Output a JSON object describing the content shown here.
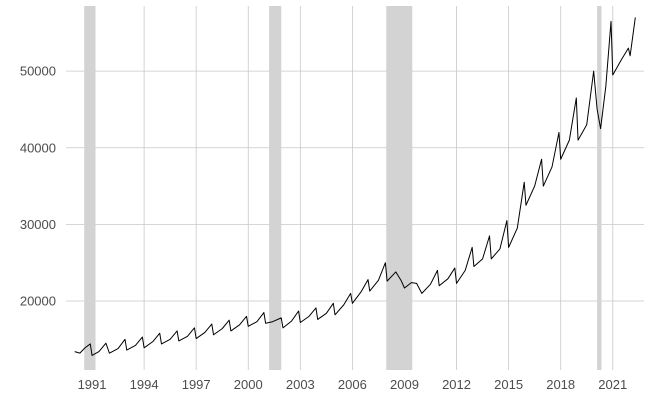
{
  "chart_data": {
    "type": "line",
    "title": "",
    "xlabel": "",
    "ylabel": "",
    "xlim": [
      1989.5,
      2022.8
    ],
    "ylim": [
      11000,
      58500
    ],
    "x_ticks": [
      1991,
      1994,
      1997,
      2000,
      2003,
      2006,
      2009,
      2012,
      2015,
      2018,
      2021
    ],
    "y_ticks": [
      20000,
      30000,
      40000,
      50000
    ],
    "y_tick_labels": [
      "20000",
      "30000",
      "40000",
      "50000"
    ],
    "grid": true,
    "legend": "none",
    "colors": {
      "line": "#000000",
      "recession": "#d3d3d3",
      "grid": "#c8c8c8",
      "text": "#4d4d4d"
    },
    "recessions": [
      {
        "start": 1990.55,
        "end": 1991.2
      },
      {
        "start": 2001.2,
        "end": 2001.9
      },
      {
        "start": 2007.95,
        "end": 2009.45
      },
      {
        "start": 2020.1,
        "end": 2020.35
      }
    ],
    "series": [
      {
        "points": [
          [
            1990.0,
            13400
          ],
          [
            1990.3,
            13200
          ],
          [
            1990.6,
            13900
          ],
          [
            1990.9,
            14400
          ],
          [
            1991.0,
            12900
          ],
          [
            1991.4,
            13400
          ],
          [
            1991.8,
            14500
          ],
          [
            1992.0,
            13200
          ],
          [
            1992.5,
            13800
          ],
          [
            1992.9,
            15000
          ],
          [
            1993.0,
            13600
          ],
          [
            1993.5,
            14200
          ],
          [
            1993.9,
            15300
          ],
          [
            1994.0,
            13900
          ],
          [
            1994.5,
            14700
          ],
          [
            1994.9,
            15800
          ],
          [
            1995.0,
            14400
          ],
          [
            1995.5,
            15000
          ],
          [
            1995.9,
            16100
          ],
          [
            1996.0,
            14800
          ],
          [
            1996.5,
            15400
          ],
          [
            1996.9,
            16500
          ],
          [
            1997.0,
            15100
          ],
          [
            1997.5,
            15900
          ],
          [
            1997.9,
            17000
          ],
          [
            1998.0,
            15600
          ],
          [
            1998.5,
            16400
          ],
          [
            1998.9,
            17500
          ],
          [
            1999.0,
            16100
          ],
          [
            1999.5,
            16900
          ],
          [
            1999.9,
            18000
          ],
          [
            2000.0,
            16700
          ],
          [
            2000.5,
            17300
          ],
          [
            2000.9,
            18500
          ],
          [
            2001.0,
            17100
          ],
          [
            2001.4,
            17300
          ],
          [
            2001.9,
            17800
          ],
          [
            2002.0,
            16500
          ],
          [
            2002.5,
            17400
          ],
          [
            2002.9,
            18700
          ],
          [
            2003.0,
            17200
          ],
          [
            2003.5,
            18000
          ],
          [
            2003.9,
            19100
          ],
          [
            2004.0,
            17600
          ],
          [
            2004.5,
            18400
          ],
          [
            2004.9,
            19700
          ],
          [
            2005.0,
            18200
          ],
          [
            2005.5,
            19500
          ],
          [
            2005.9,
            21000
          ],
          [
            2006.0,
            19700
          ],
          [
            2006.5,
            21200
          ],
          [
            2006.9,
            22800
          ],
          [
            2007.0,
            21300
          ],
          [
            2007.5,
            22700
          ],
          [
            2007.9,
            25000
          ],
          [
            2008.0,
            22600
          ],
          [
            2008.5,
            23800
          ],
          [
            2008.8,
            22700
          ],
          [
            2009.0,
            21700
          ],
          [
            2009.4,
            22400
          ],
          [
            2009.7,
            22300
          ],
          [
            2010.0,
            21000
          ],
          [
            2010.5,
            22200
          ],
          [
            2010.9,
            24000
          ],
          [
            2011.0,
            22000
          ],
          [
            2011.5,
            22900
          ],
          [
            2011.9,
            24300
          ],
          [
            2012.0,
            22300
          ],
          [
            2012.5,
            24000
          ],
          [
            2012.9,
            27000
          ],
          [
            2013.0,
            24500
          ],
          [
            2013.5,
            25500
          ],
          [
            2013.9,
            28500
          ],
          [
            2014.0,
            25500
          ],
          [
            2014.5,
            26800
          ],
          [
            2014.9,
            30500
          ],
          [
            2015.0,
            27000
          ],
          [
            2015.5,
            29500
          ],
          [
            2015.9,
            35500
          ],
          [
            2016.0,
            32500
          ],
          [
            2016.5,
            35000
          ],
          [
            2016.9,
            38500
          ],
          [
            2017.0,
            35000
          ],
          [
            2017.5,
            37500
          ],
          [
            2017.9,
            42000
          ],
          [
            2018.0,
            38500
          ],
          [
            2018.5,
            41000
          ],
          [
            2018.9,
            46500
          ],
          [
            2019.0,
            41000
          ],
          [
            2019.5,
            43000
          ],
          [
            2019.9,
            50000
          ],
          [
            2020.1,
            45000
          ],
          [
            2020.3,
            42500
          ],
          [
            2020.6,
            48000
          ],
          [
            2020.9,
            56500
          ],
          [
            2021.0,
            49500
          ],
          [
            2021.5,
            51500
          ],
          [
            2021.9,
            53000
          ],
          [
            2022.0,
            52000
          ],
          [
            2022.3,
            57000
          ]
        ]
      }
    ]
  }
}
